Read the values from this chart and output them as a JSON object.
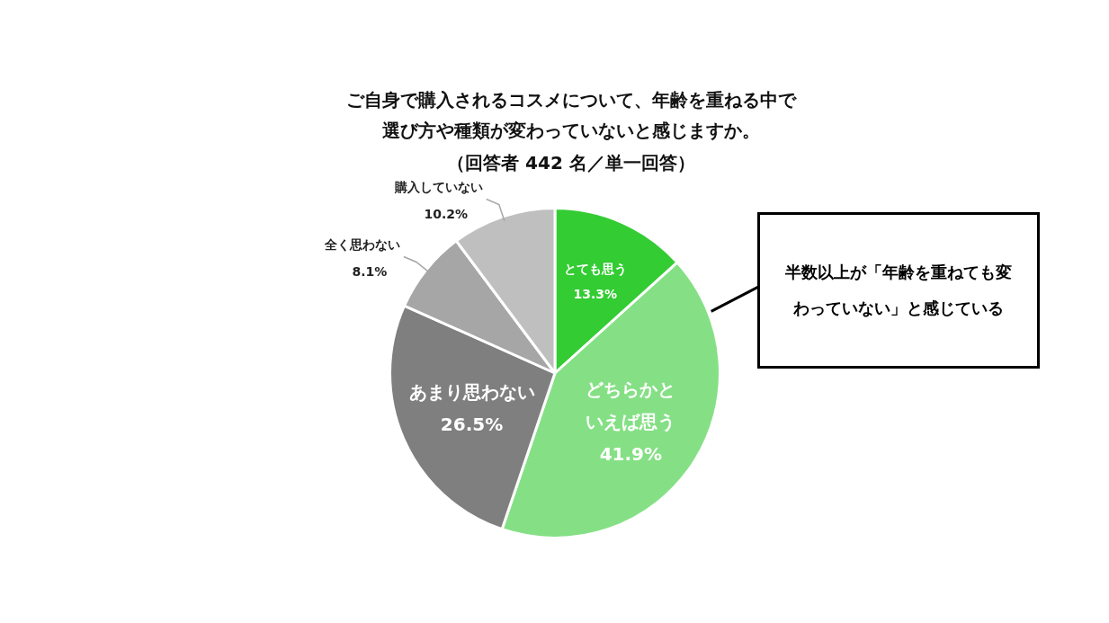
{
  "chart_data": {
    "type": "pie",
    "title": "ご自身で購入されるコスメについて、年齢を重ねる中で選び方や種類が変わっていないと感じますか。",
    "subtitle": "（回答者 442 名／単一回答）",
    "categories": [
      "とても思う",
      "どちらかといえば思う",
      "あまり思わない",
      "全く思わない",
      "購入していない"
    ],
    "values": [
      13.3,
      41.9,
      26.5,
      8.1,
      10.2
    ],
    "value_labels": [
      "13.3%",
      "41.9%",
      "26.5%",
      "8.1%",
      "10.2%"
    ],
    "colors": [
      "#33cc33",
      "#85e085",
      "#7f7f7f",
      "#a6a6a6",
      "#bfbfbf"
    ],
    "legend": false,
    "annotations": [
      "半数以上が「年齢を重ねても変わっていない」と感じている"
    ]
  }
}
